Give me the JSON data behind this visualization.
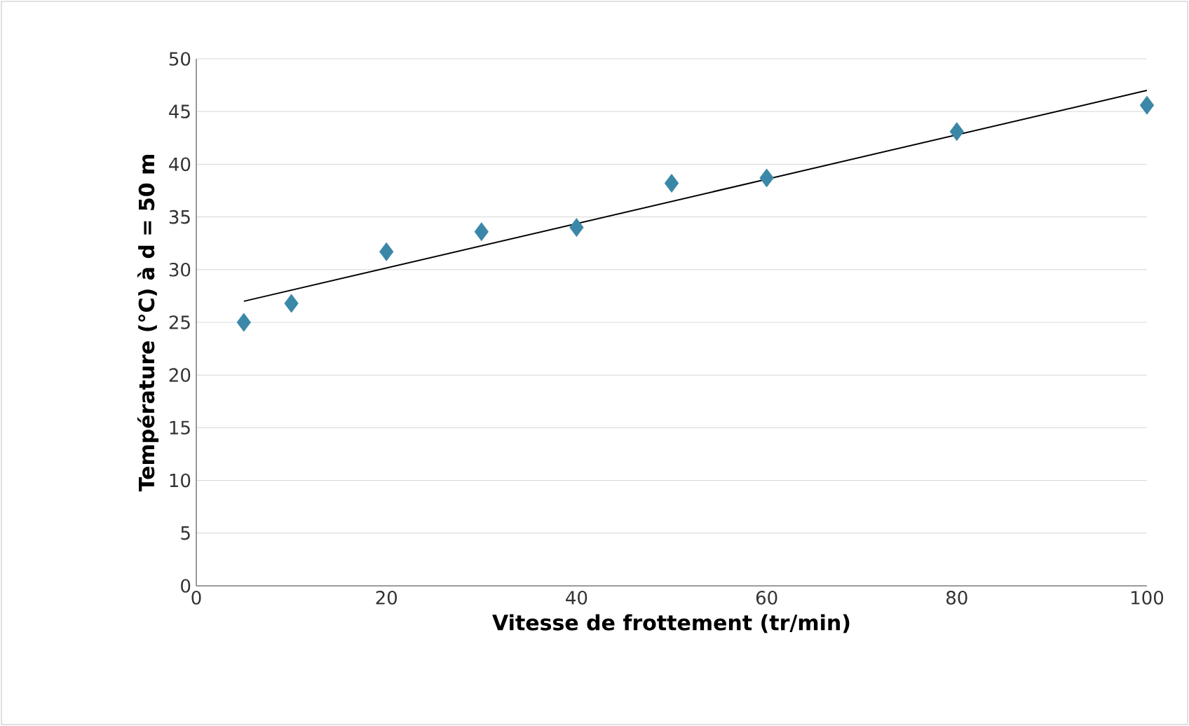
{
  "chart_data": {
    "type": "scatter",
    "xlabel": "Vitesse de frottement (tr/min)",
    "ylabel": "Température (°C) à d = 50 m",
    "marker": "diamond",
    "grid": "y",
    "xlim": [
      0,
      100
    ],
    "ylim": [
      0,
      50
    ],
    "xticks": [
      0,
      20,
      40,
      60,
      80,
      100
    ],
    "yticks": [
      0,
      5,
      10,
      15,
      20,
      25,
      30,
      35,
      40,
      45,
      50
    ],
    "series": [
      {
        "color": "#3a87a8",
        "x": [
          5,
          10,
          20,
          30,
          40,
          50,
          60,
          80,
          100
        ],
        "values": [
          25.0,
          26.8,
          31.7,
          33.6,
          34.0,
          38.2,
          38.7,
          43.1,
          45.6
        ]
      },
      {
        "type": "line",
        "color": "#000000",
        "marker": "none",
        "x": [
          5,
          100
        ],
        "values": [
          27.0,
          47.0
        ]
      }
    ]
  }
}
